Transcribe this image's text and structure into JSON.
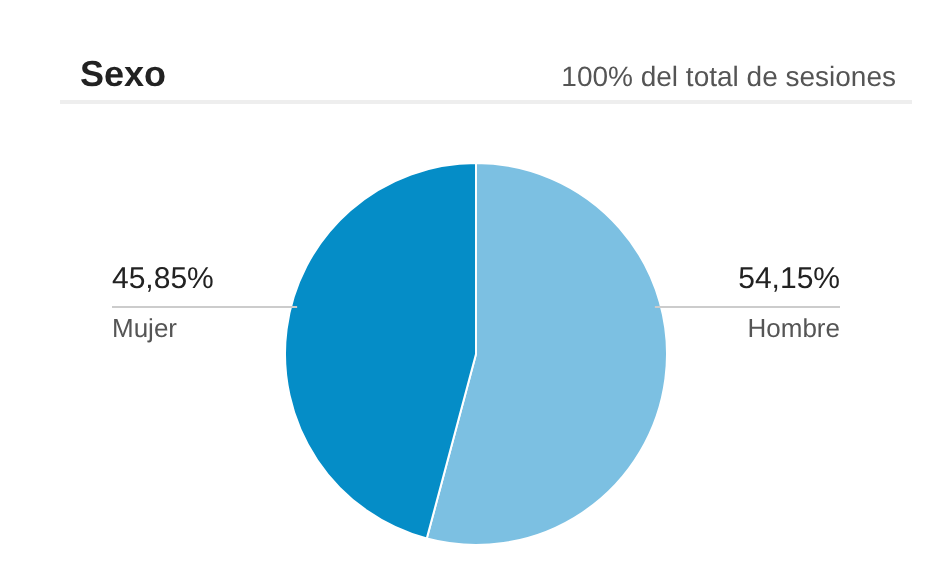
{
  "chart_data": {
    "type": "pie",
    "title": "Sexo",
    "subtitle": "100% del total de sesiones",
    "categories": [
      "Hombre",
      "Mujer"
    ],
    "values": [
      54.15,
      45.85
    ],
    "colors": [
      "#7cc0e2",
      "#058dc7"
    ],
    "value_labels": [
      "54,15%",
      "45,85%"
    ]
  }
}
